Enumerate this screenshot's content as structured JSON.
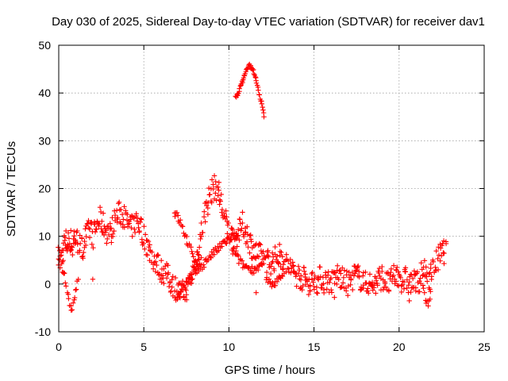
{
  "chart_data": {
    "type": "scatter",
    "title": "Day 030 of 2025, Sidereal Day-to-day VTEC variation (SDTVAR) for receiver dav1",
    "xlabel": "GPS time / hours",
    "ylabel": "SDTVAR / TECUs",
    "xlim": [
      0,
      25
    ],
    "ylim": [
      -10,
      50
    ],
    "xticks": [
      "0",
      "5",
      "10",
      "15",
      "20",
      "25"
    ],
    "xtick_values": [
      0,
      5,
      10,
      15,
      20,
      25
    ],
    "yticks": [
      "-10",
      "0",
      "10",
      "20",
      "30",
      "40",
      "50"
    ],
    "ytick_values": [
      -10,
      0,
      10,
      20,
      30,
      40,
      50
    ],
    "grid": true,
    "marker": "+",
    "color": "#ff0000",
    "series": [
      {
        "name": "SDTVAR",
        "trace": [
          [
            0.0,
            5.5
          ],
          [
            0.2,
            6.0
          ],
          [
            0.3,
            8.5
          ],
          [
            0.4,
            9.0
          ],
          [
            0.5,
            8.0
          ],
          [
            0.6,
            9.5
          ],
          [
            0.7,
            9.0
          ],
          [
            0.8,
            7.5
          ],
          [
            0.9,
            10.0
          ],
          [
            1.0,
            9.5
          ],
          [
            1.2,
            8.5
          ],
          [
            1.4,
            7.0
          ],
          [
            1.5,
            9.0
          ],
          [
            1.7,
            10.5
          ],
          [
            1.9,
            11.5
          ],
          [
            2.0,
            10.0
          ],
          [
            2.2,
            12.0
          ],
          [
            2.4,
            13.5
          ],
          [
            2.6,
            12.5
          ],
          [
            2.8,
            11.0
          ],
          [
            3.0,
            10.5
          ],
          [
            3.2,
            12.5
          ],
          [
            3.4,
            14.0
          ],
          [
            3.6,
            15.0
          ],
          [
            3.8,
            14.5
          ],
          [
            4.0,
            13.0
          ],
          [
            4.2,
            11.5
          ],
          [
            4.4,
            12.5
          ],
          [
            4.6,
            13.5
          ],
          [
            4.8,
            12.0
          ],
          [
            5.0,
            10.0
          ],
          [
            5.2,
            8.0
          ],
          [
            5.4,
            6.5
          ],
          [
            5.6,
            5.0
          ],
          [
            5.8,
            4.0
          ],
          [
            6.0,
            3.0
          ],
          [
            6.2,
            2.5
          ],
          [
            6.4,
            1.5
          ],
          [
            6.6,
            0.5
          ],
          [
            6.8,
            -0.5
          ],
          [
            7.0,
            -1.5
          ],
          [
            7.2,
            -2.0
          ],
          [
            7.4,
            -1.5
          ],
          [
            7.6,
            -0.5
          ],
          [
            7.8,
            1.5
          ],
          [
            8.0,
            4.0
          ],
          [
            8.2,
            7.0
          ],
          [
            8.4,
            11.0
          ],
          [
            8.6,
            15.0
          ],
          [
            8.8,
            18.0
          ],
          [
            9.0,
            19.5
          ],
          [
            9.2,
            20.5
          ],
          [
            9.4,
            19.0
          ],
          [
            9.6,
            16.0
          ],
          [
            9.8,
            13.0
          ],
          [
            10.0,
            11.0
          ],
          [
            10.2,
            10.0
          ],
          [
            10.4,
            9.5
          ],
          [
            10.6,
            11.0
          ],
          [
            10.8,
            12.5
          ],
          [
            11.0,
            11.0
          ],
          [
            11.2,
            9.0
          ],
          [
            11.4,
            7.5
          ],
          [
            11.6,
            6.5
          ],
          [
            11.8,
            6.0
          ],
          [
            12.0,
            5.5
          ],
          [
            12.2,
            5.0
          ],
          [
            12.4,
            4.5
          ],
          [
            12.6,
            5.0
          ],
          [
            12.8,
            5.5
          ],
          [
            13.0,
            6.0
          ],
          [
            13.2,
            5.0
          ],
          [
            13.4,
            4.0
          ],
          [
            13.6,
            3.5
          ],
          [
            13.8,
            2.5
          ],
          [
            14.0,
            2.0
          ],
          [
            14.2,
            1.5
          ],
          [
            14.4,
            1.0
          ],
          [
            14.6,
            0.5
          ],
          [
            14.8,
            0.0
          ],
          [
            15.0,
            1.0
          ],
          [
            15.2,
            0.5
          ],
          [
            15.4,
            1.5
          ],
          [
            15.6,
            0.5
          ],
          [
            15.8,
            1.0
          ],
          [
            16.0,
            0.0
          ],
          [
            16.2,
            1.0
          ],
          [
            16.4,
            2.0
          ],
          [
            16.6,
            1.0
          ],
          [
            16.8,
            0.5
          ],
          [
            17.0,
            0.0
          ],
          [
            17.2,
            1.0
          ],
          [
            17.4,
            2.0
          ],
          [
            17.6,
            1.5
          ],
          [
            17.8,
            1.0
          ],
          [
            18.0,
            0.0
          ],
          [
            18.2,
            0.5
          ],
          [
            18.4,
            -0.5
          ],
          [
            18.6,
            0.0
          ],
          [
            18.8,
            1.0
          ],
          [
            19.0,
            1.5
          ],
          [
            19.2,
            0.5
          ],
          [
            19.4,
            0.0
          ],
          [
            19.6,
            1.0
          ],
          [
            19.8,
            2.0
          ],
          [
            20.0,
            1.5
          ],
          [
            20.2,
            0.5
          ],
          [
            20.4,
            1.0
          ],
          [
            20.6,
            0.0
          ],
          [
            20.8,
            0.5
          ],
          [
            21.0,
            0.0
          ],
          [
            21.2,
            1.0
          ],
          [
            21.4,
            2.5
          ],
          [
            21.6,
            2.0
          ],
          [
            21.8,
            1.5
          ],
          [
            22.0,
            3.0
          ],
          [
            22.2,
            4.5
          ],
          [
            22.4,
            6.0
          ],
          [
            22.6,
            7.0
          ],
          [
            22.8,
            6.5
          ]
        ],
        "loops": [
          [
            [
              0.0,
              5.0
            ],
            [
              0.2,
              3.0
            ],
            [
              0.4,
              1.0
            ],
            [
              0.5,
              -1.5
            ],
            [
              0.6,
              -3.5
            ],
            [
              0.7,
              -4.5
            ],
            [
              0.8,
              -5.0
            ],
            [
              0.9,
              -3.5
            ],
            [
              1.0,
              -1.5
            ],
            [
              1.1,
              0.5
            ],
            [
              1.2,
              2.5
            ]
          ],
          [
            [
              6.8,
              15.0
            ],
            [
              7.0,
              14.0
            ],
            [
              7.2,
              12.5
            ],
            [
              7.4,
              10.5
            ],
            [
              7.6,
              8.5
            ],
            [
              7.8,
              6.5
            ],
            [
              8.0,
              5.0
            ],
            [
              8.2,
              4.5
            ],
            [
              8.4,
              5.0
            ]
          ],
          [
            [
              7.0,
              -2.0
            ],
            [
              7.3,
              -1.0
            ],
            [
              7.6,
              0.5
            ],
            [
              7.9,
              2.0
            ],
            [
              8.2,
              3.0
            ],
            [
              8.5,
              4.0
            ],
            [
              8.8,
              5.5
            ],
            [
              9.1,
              6.5
            ],
            [
              9.4,
              7.5
            ],
            [
              9.7,
              8.5
            ],
            [
              10.0,
              9.5
            ],
            [
              10.3,
              10.0
            ],
            [
              10.6,
              9.5
            ]
          ],
          [
            [
              10.2,
              7.0
            ],
            [
              10.5,
              5.5
            ],
            [
              10.8,
              4.0
            ],
            [
              11.1,
              3.5
            ],
            [
              11.4,
              3.0
            ],
            [
              11.7,
              3.5
            ],
            [
              12.0,
              4.0
            ]
          ],
          [
            [
              12.2,
              1.0
            ],
            [
              12.4,
              0.0
            ],
            [
              12.6,
              -0.5
            ],
            [
              12.8,
              0.5
            ],
            [
              13.0,
              1.5
            ],
            [
              13.2,
              2.5
            ]
          ],
          [
            [
              21.4,
              -0.5
            ],
            [
              21.5,
              -2.0
            ],
            [
              21.6,
              -3.5
            ],
            [
              21.7,
              -5.0
            ],
            [
              21.8,
              -3.0
            ],
            [
              21.9,
              -1.0
            ]
          ]
        ],
        "arc": [
          [
            10.4,
            39.0
          ],
          [
            10.6,
            40.5
          ],
          [
            10.8,
            42.5
          ],
          [
            11.0,
            44.5
          ],
          [
            11.2,
            45.8
          ],
          [
            11.4,
            45.0
          ],
          [
            11.6,
            42.5
          ],
          [
            11.8,
            39.5
          ],
          [
            12.0,
            36.5
          ],
          [
            12.1,
            34.0
          ]
        ],
        "outliers": [
          [
            11.6,
            -1.8
          ],
          [
            13.0,
            6.0
          ],
          [
            14.4,
            3.5
          ],
          [
            16.2,
            -2.8
          ],
          [
            20.6,
            -3.5
          ],
          [
            2.0,
            1.0
          ]
        ]
      }
    ]
  }
}
